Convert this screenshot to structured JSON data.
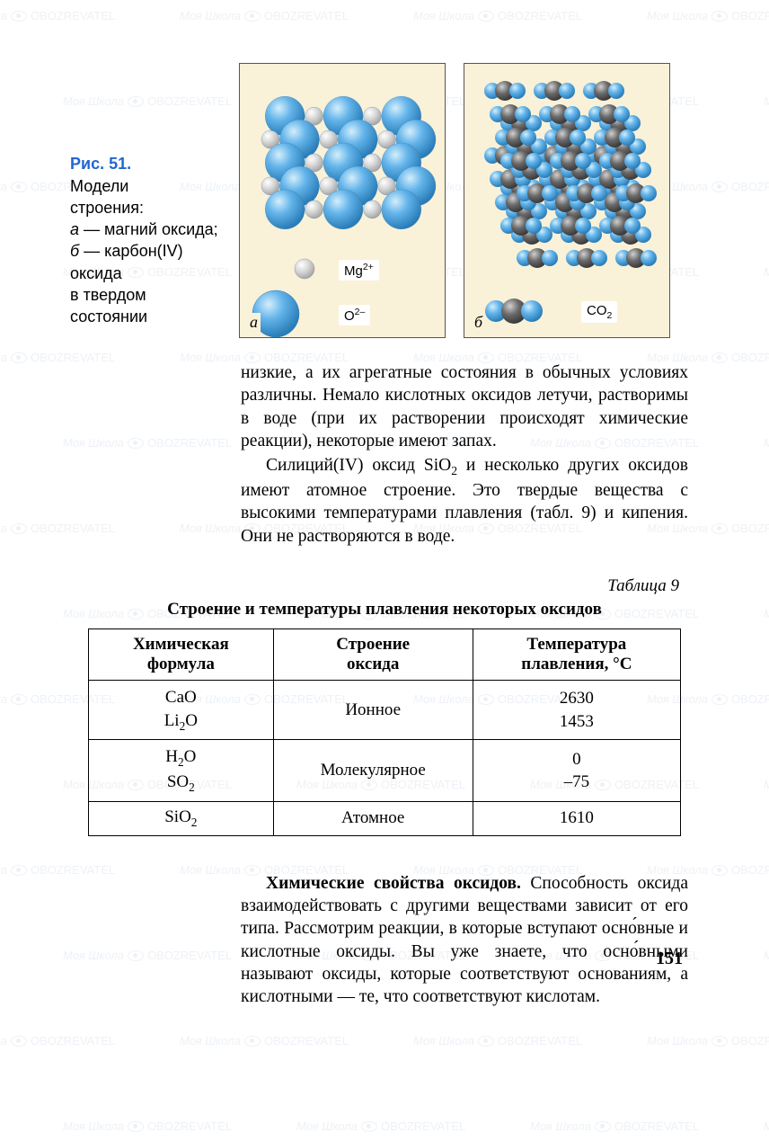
{
  "watermark": {
    "text1": "Моя Школа",
    "text2": "OBOZREVATEL"
  },
  "caption": {
    "title": "Рис. 51.",
    "line1": "Модели",
    "line2": "строения:",
    "line3_label": "а",
    "line3_text": " — магний оксида;",
    "line4_label": "б",
    "line4_text": " — карбон(IV) оксида",
    "line5": "в твердом состоянии"
  },
  "figures": {
    "bg_color": "#f9f1d8",
    "border_color": "#555555",
    "fig_a": {
      "sub_label": "а",
      "ion1_label": "Mg",
      "ion1_sup": "2+",
      "ion2_label": "O",
      "ion2_sup": "2–",
      "large_sphere_fill": "#63b4ea",
      "large_sphere_highlight": "#c9e6f9",
      "small_sphere_fill": "#d8d8d8",
      "small_sphere_highlight": "#ffffff"
    },
    "fig_b": {
      "sub_label": "б",
      "mol_label": "CO",
      "mol_sub": "2",
      "carbon_fill": "#6a6a6a",
      "carbon_highlight": "#c0c0c0",
      "oxygen_fill": "#63b4ea",
      "oxygen_highlight": "#c9e6f9"
    }
  },
  "paragraph1_part1": "низкие, а их агрегатные состояния в обычных условиях различны. Немало кислотных оксидов летучи, растворимы в воде (при их растворении происходят химические реакции), некоторые имеют запах.",
  "paragraph1_part2a": "Силиций(IV) оксид SiO",
  "paragraph1_part2b": " и несколько других оксидов имеют атомное строение. Это твердые вещества с высокими температурами плавления (табл. 9) и кипения. Они не растворяются в воде.",
  "table": {
    "label": "Таблица 9",
    "title": "Строение и температуры плавления некоторых оксидов",
    "columns": [
      {
        "l1": "Химическая",
        "l2": "формула"
      },
      {
        "l1": "Строение",
        "l2": "оксида"
      },
      {
        "l1": "Температура",
        "l2": "плавления, °С"
      }
    ],
    "rows": [
      {
        "formula_a": "CaO",
        "formula_b_base": "Li",
        "formula_b_sub": "2",
        "formula_b_tail": "O",
        "structure": "Ионное",
        "temp_a": "2630",
        "temp_b": "1453"
      },
      {
        "formula_a_base": "H",
        "formula_a_sub": "2",
        "formula_a_tail": "O",
        "formula_b_base": "SO",
        "formula_b_sub": "2",
        "formula_b_tail": "",
        "structure": "Молекулярное",
        "temp_a": "0",
        "temp_b": "–75"
      },
      {
        "formula_a_base": "SiO",
        "formula_a_sub": "2",
        "formula_a_tail": "",
        "structure": "Атомное",
        "temp_a": "1610"
      }
    ]
  },
  "paragraph2_heading": "Химические свойства оксидов.",
  "paragraph2_body": " Способность оксида взаимодействовать с другими веществами зависит от его типа. Рассмотрим реакции, в которые вступают осно́вные и кислотные оксиды. Вы уже знаете, что осно́вными называют оксиды, которые соответствуют основаниям, а кислотными — те, что соответствуют кислотам.",
  "page_number": "151"
}
